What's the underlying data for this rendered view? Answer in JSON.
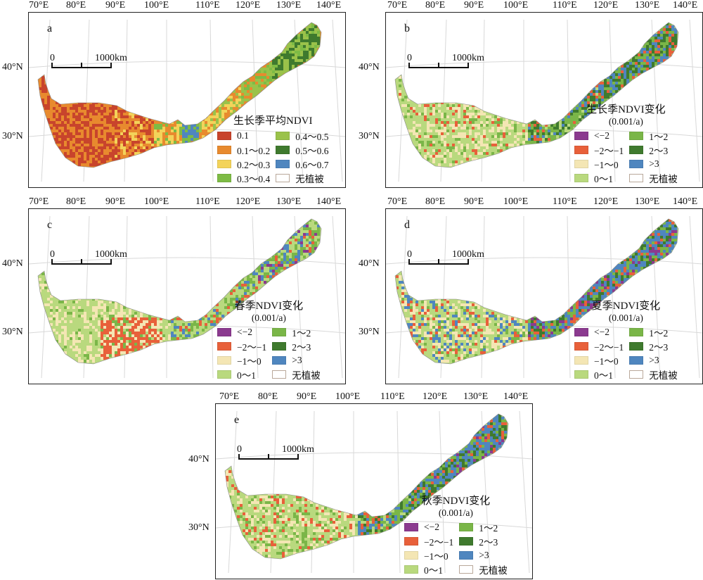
{
  "lon_labels": [
    "70°E",
    "80°E",
    "90°E",
    "100°E",
    "110°E",
    "120°E",
    "130°E",
    "140°E"
  ],
  "lat_labels": [
    "40°N",
    "30°N"
  ],
  "scale_bar": {
    "zero": "0",
    "distance": "1000km"
  },
  "colors": {
    "lt_-2": "#8b3a8f",
    "-2_-1": "#e8603a",
    "-1_0": "#f4e6b4",
    "0_1": "#b9d97e",
    "1_2": "#7ab648",
    "2_3": "#3f7a2e",
    "gt_3": "#4f86bf",
    "mean_0.1": "#c8442c",
    "mean_0.1_0.2": "#e88a2e",
    "mean_0.2_0.3": "#f3d35a",
    "mean_0.3_0.4": "#7dbb45",
    "mean_0.4_0.5": "#9ac24a",
    "mean_0.5_0.6": "#3f7a2e",
    "mean_0.6_0.7": "#4f86bf",
    "no_veg": "#ffffff"
  },
  "panels": [
    {
      "label": "a",
      "legend_title": "生长季平均NDVI",
      "legend_subtitle": "",
      "items": [
        {
          "text": "0.1",
          "color": "#c8442c"
        },
        {
          "text": "0.4～0.5",
          "color": "#9ac24a"
        },
        {
          "text": "0.1～0.2",
          "color": "#e88a2e"
        },
        {
          "text": "0.5～0.6",
          "color": "#3f7a2e"
        },
        {
          "text": "0.2～0.3",
          "color": "#f3d35a"
        },
        {
          "text": "0.6～0.7",
          "color": "#4f86bf"
        },
        {
          "text": "0.3～0.4",
          "color": "#7dbb45"
        },
        {
          "text": "无植被",
          "color": "none"
        }
      ]
    },
    {
      "label": "b",
      "legend_title": "生长季NDVI变化",
      "legend_subtitle": "(0.001/a)",
      "items": [
        {
          "text": "<−2",
          "color": "#8b3a8f"
        },
        {
          "text": "1～2",
          "color": "#7ab648"
        },
        {
          "text": "−2～−1",
          "color": "#e8603a"
        },
        {
          "text": "2～3",
          "color": "#3f7a2e"
        },
        {
          "text": "−1～0",
          "color": "#f4e6b4"
        },
        {
          "text": ">3",
          "color": "#4f86bf"
        },
        {
          "text": "0～1",
          "color": "#b9d97e"
        },
        {
          "text": "无植被",
          "color": "none"
        }
      ]
    },
    {
      "label": "c",
      "legend_title": "春季NDVI变化",
      "legend_subtitle": "(0.001/a)",
      "items": [
        {
          "text": "<−2",
          "color": "#8b3a8f"
        },
        {
          "text": "1～2",
          "color": "#7ab648"
        },
        {
          "text": "−2～−1",
          "color": "#e8603a"
        },
        {
          "text": "2～3",
          "color": "#3f7a2e"
        },
        {
          "text": "−1～0",
          "color": "#f4e6b4"
        },
        {
          "text": ">3",
          "color": "#4f86bf"
        },
        {
          "text": "0～1",
          "color": "#b9d97e"
        },
        {
          "text": "无植被",
          "color": "none"
        }
      ]
    },
    {
      "label": "d",
      "legend_title": "夏季NDVI变化",
      "legend_subtitle": "(0.001/a)",
      "items": [
        {
          "text": "<−2",
          "color": "#8b3a8f"
        },
        {
          "text": "1～2",
          "color": "#7ab648"
        },
        {
          "text": "−2～−1",
          "color": "#e8603a"
        },
        {
          "text": "2～3",
          "color": "#3f7a2e"
        },
        {
          "text": "−1～0",
          "color": "#f4e6b4"
        },
        {
          "text": ">3",
          "color": "#4f86bf"
        },
        {
          "text": "0～1",
          "color": "#b9d97e"
        },
        {
          "text": "无植被",
          "color": "none"
        }
      ]
    },
    {
      "label": "e",
      "legend_title": "秋季NDVI变化",
      "legend_subtitle": "(0.001/a)",
      "items": [
        {
          "text": "<−2",
          "color": "#8b3a8f"
        },
        {
          "text": "1～2",
          "color": "#7ab648"
        },
        {
          "text": "−2～−1",
          "color": "#e8603a"
        },
        {
          "text": "2～3",
          "color": "#3f7a2e"
        },
        {
          "text": "−1～0",
          "color": "#f4e6b4"
        },
        {
          "text": ">3",
          "color": "#4f86bf"
        },
        {
          "text": "0～1",
          "color": "#b9d97e"
        },
        {
          "text": "无植被",
          "color": "none"
        }
      ]
    }
  ]
}
